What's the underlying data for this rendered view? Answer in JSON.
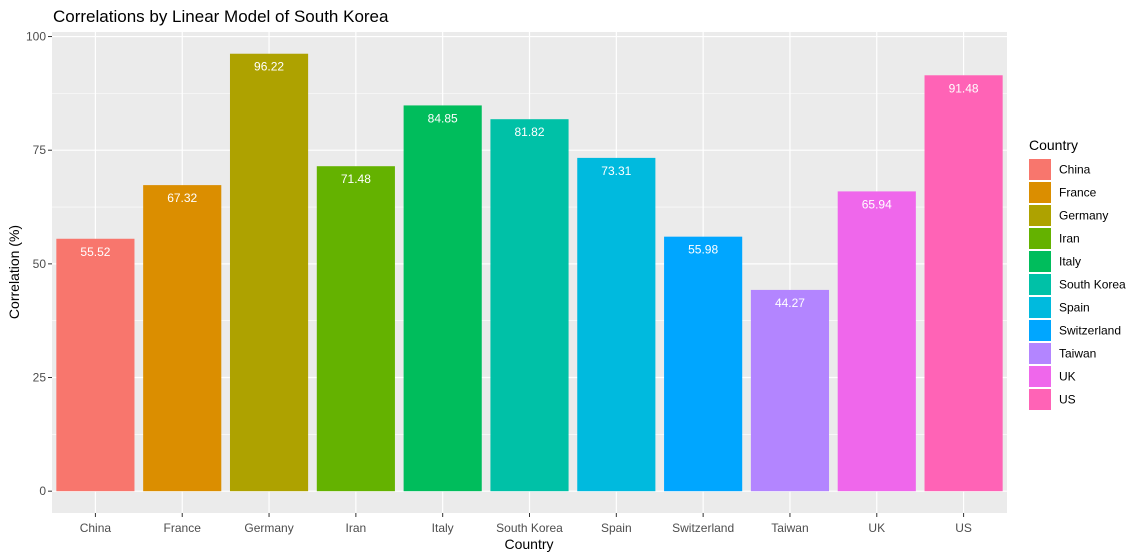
{
  "chart_data": {
    "type": "bar",
    "title": "Correlations by Linear Model of South Korea",
    "xlabel": "Country",
    "ylabel": "Correlation (%)",
    "ylim": [
      -4.8,
      101.0
    ],
    "yticks": [
      0,
      25,
      50,
      75,
      100
    ],
    "grid": true,
    "legend_position": "right",
    "legend_title": "Country",
    "categories": [
      "China",
      "France",
      "Germany",
      "Iran",
      "Italy",
      "South Korea",
      "Spain",
      "Switzerland",
      "Taiwan",
      "UK",
      "US"
    ],
    "values": [
      55.52,
      67.32,
      96.22,
      71.48,
      84.85,
      81.82,
      73.31,
      55.98,
      44.27,
      65.94,
      91.48
    ],
    "data_labels": [
      "55.52",
      "67.32",
      "96.22",
      "71.48",
      "84.85",
      "81.82",
      "73.31",
      "55.98",
      "44.27",
      "65.94",
      "91.48"
    ],
    "colors": [
      "#F8766D",
      "#DB8E00",
      "#AEA200",
      "#64B200",
      "#00BD5C",
      "#00C1A7",
      "#00BADE",
      "#00A6FF",
      "#B385FF",
      "#EF67EB",
      "#FF63B6"
    ]
  }
}
